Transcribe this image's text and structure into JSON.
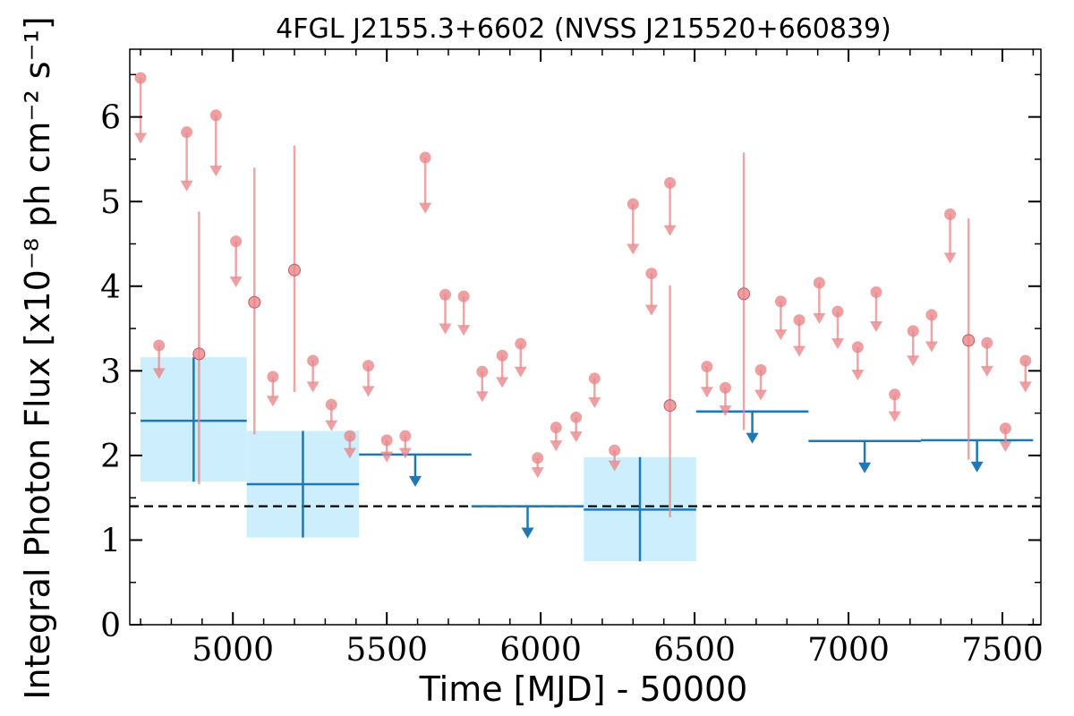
{
  "chart_data": {
    "type": "scatter",
    "title": "4FGL J2155.3+6602 (NVSS J215520+660839)",
    "xlabel": "Time [MJD] - 50000",
    "ylabel": "Integral Photon Flux [x10⁻⁸ ph cm⁻² s⁻¹]",
    "xlim": [
      4665,
      7625
    ],
    "ylim": [
      0,
      6.8
    ],
    "x_ticks": [
      5000,
      5500,
      6000,
      6500,
      7000,
      7500
    ],
    "y_ticks": [
      0,
      1,
      2,
      3,
      4,
      5,
      6
    ],
    "reference_level": 1.4,
    "colors": {
      "short_bins": "#e8878b",
      "long_bins": "#1f77b4",
      "long_bin_band": "#cdeefc",
      "reference_line": "#000000"
    },
    "short_bins_upper_limits": [
      {
        "x": 4700,
        "y": 6.46
      },
      {
        "x": 4760,
        "y": 3.3
      },
      {
        "x": 4850,
        "y": 5.82
      },
      {
        "x": 4945,
        "y": 6.02
      },
      {
        "x": 5010,
        "y": 4.53
      },
      {
        "x": 5130,
        "y": 2.93
      },
      {
        "x": 5260,
        "y": 3.12
      },
      {
        "x": 5320,
        "y": 2.6
      },
      {
        "x": 5380,
        "y": 2.23
      },
      {
        "x": 5440,
        "y": 3.06
      },
      {
        "x": 5500,
        "y": 2.18
      },
      {
        "x": 5560,
        "y": 2.23
      },
      {
        "x": 5625,
        "y": 5.52
      },
      {
        "x": 5690,
        "y": 3.9
      },
      {
        "x": 5750,
        "y": 3.88
      },
      {
        "x": 5810,
        "y": 2.99
      },
      {
        "x": 5875,
        "y": 3.18
      },
      {
        "x": 5935,
        "y": 3.32
      },
      {
        "x": 5990,
        "y": 1.97
      },
      {
        "x": 6050,
        "y": 2.33
      },
      {
        "x": 6115,
        "y": 2.45
      },
      {
        "x": 6175,
        "y": 2.91
      },
      {
        "x": 6240,
        "y": 2.06
      },
      {
        "x": 6300,
        "y": 4.97
      },
      {
        "x": 6360,
        "y": 4.15
      },
      {
        "x": 6420,
        "y": 5.22
      },
      {
        "x": 6540,
        "y": 3.05
      },
      {
        "x": 6600,
        "y": 2.8
      },
      {
        "x": 6715,
        "y": 3.01
      },
      {
        "x": 6780,
        "y": 3.82
      },
      {
        "x": 6840,
        "y": 3.6
      },
      {
        "x": 6905,
        "y": 4.04
      },
      {
        "x": 6965,
        "y": 3.7
      },
      {
        "x": 7030,
        "y": 3.28
      },
      {
        "x": 7090,
        "y": 3.93
      },
      {
        "x": 7150,
        "y": 2.72
      },
      {
        "x": 7210,
        "y": 3.47
      },
      {
        "x": 7270,
        "y": 3.66
      },
      {
        "x": 7330,
        "y": 4.85
      },
      {
        "x": 7450,
        "y": 3.33
      },
      {
        "x": 7510,
        "y": 2.32
      },
      {
        "x": 7575,
        "y": 3.12
      }
    ],
    "short_bins_detections": [
      {
        "x": 4890,
        "y": 3.2,
        "y_low": 1.66,
        "y_high": 4.88
      },
      {
        "x": 5070,
        "y": 3.81,
        "y_low": 2.25,
        "y_high": 5.4
      },
      {
        "x": 5200,
        "y": 4.19,
        "y_low": 2.75,
        "y_high": 5.66
      },
      {
        "x": 6660,
        "y": 3.91,
        "y_low": 2.3,
        "y_high": 5.58
      },
      {
        "x": 6420,
        "y": 2.59,
        "y_low": 1.27,
        "y_high": 4.01
      },
      {
        "x": 7390,
        "y": 3.36,
        "y_low": 1.95,
        "y_high": 4.8
      }
    ],
    "long_bins_detections": [
      {
        "x_start": 4700,
        "x_end": 5045,
        "y": 2.41,
        "y_low": 1.69,
        "y_high": 3.16
      },
      {
        "x_start": 5045,
        "x_end": 5410,
        "y": 1.66,
        "y_low": 1.03,
        "y_high": 2.29
      },
      {
        "x_start": 6140,
        "x_end": 6505,
        "y": 1.36,
        "y_low": 0.75,
        "y_high": 1.98
      }
    ],
    "long_bins_upper_limits": [
      {
        "x_start": 5410,
        "x_end": 5775,
        "y": 2.01
      },
      {
        "x_start": 5775,
        "x_end": 6140,
        "y": 1.4
      },
      {
        "x_start": 6505,
        "x_end": 6870,
        "y": 2.52
      },
      {
        "x_start": 6870,
        "x_end": 7235,
        "y": 2.17
      },
      {
        "x_start": 7235,
        "x_end": 7600,
        "y": 2.18
      }
    ]
  }
}
